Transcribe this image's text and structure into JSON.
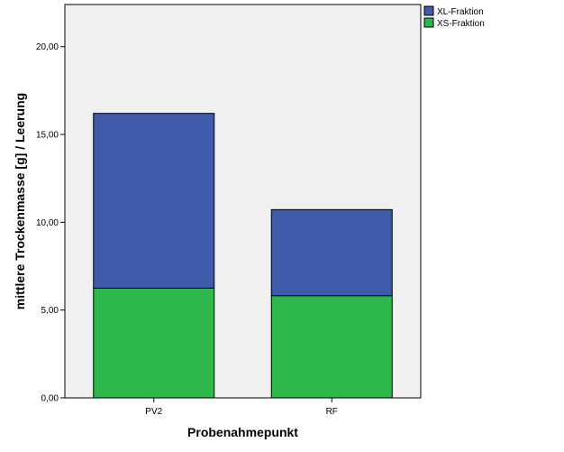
{
  "chart_data": {
    "type": "bar",
    "stacked": true,
    "title": "",
    "xlabel": "Probenahmepunkt",
    "ylabel": "mittlere Trockenmasse [g] / Leerung",
    "categories": [
      "PV2",
      "RF"
    ],
    "series": [
      {
        "name": "XS-Fraktion",
        "color": "#2eb84b",
        "values": [
          6.25,
          5.82
        ]
      },
      {
        "name": "XL-Fraktion",
        "color": "#3d5aab",
        "values": [
          9.95,
          4.9
        ]
      }
    ],
    "ylim": [
      0,
      22.4
    ],
    "yticks": [
      0,
      5,
      10,
      15,
      20
    ],
    "ytick_labels": [
      "0,00",
      "5,00",
      "10,00",
      "15,00",
      "20,00"
    ],
    "legend": {
      "position": "top-right",
      "entries": [
        "XL-Fraktion",
        "XS-Fraktion"
      ]
    },
    "grid": false,
    "plot_background": "#f0f0f0"
  }
}
